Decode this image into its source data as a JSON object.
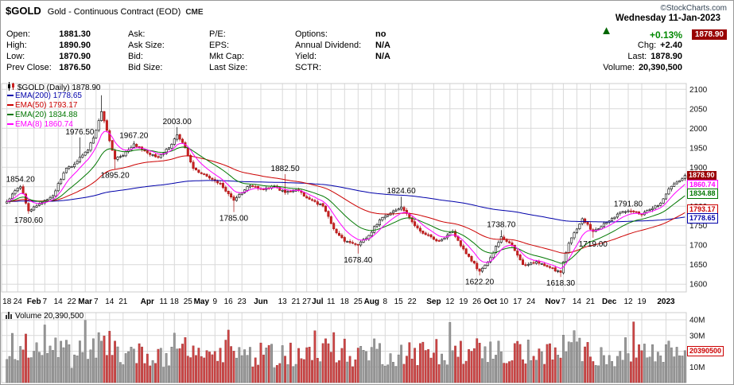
{
  "header": {
    "symbol": "$GOLD",
    "title": "Gold - Continuous Contract (EOD)",
    "exchange": "CME",
    "copyright": "©StockCharts.com",
    "date": "Wednesday 11-Jan-2023",
    "direction_icon": "▲",
    "change_pct": "+0.13%",
    "price_badge": "1878.90",
    "right_rows": [
      {
        "label": "Chg:",
        "value": "+2.40"
      },
      {
        "label": "Last:",
        "value": "1878.90"
      },
      {
        "label": "Volume:",
        "value": "20,390,500"
      }
    ],
    "quote_columns": [
      {
        "rows": [
          {
            "label": "Open:",
            "value": "1881.30"
          },
          {
            "label": "High:",
            "value": "1890.90"
          },
          {
            "label": "Low:",
            "value": "1870.90"
          },
          {
            "label": "Prev Close:",
            "value": "1876.50"
          }
        ]
      },
      {
        "rows": [
          {
            "label": "Ask:",
            "value": ""
          },
          {
            "label": "Ask Size:",
            "value": ""
          },
          {
            "label": "Bid:",
            "value": ""
          },
          {
            "label": "Bid Size:",
            "value": ""
          }
        ]
      },
      {
        "rows": [
          {
            "label": "P/E:",
            "value": ""
          },
          {
            "label": "EPS:",
            "value": ""
          },
          {
            "label": "Mkt Cap:",
            "value": ""
          },
          {
            "label": "Last Size:",
            "value": ""
          }
        ]
      },
      {
        "rows": [
          {
            "label": "Options:",
            "value": "no"
          },
          {
            "label": "Annual Dividend:",
            "value": "N/A"
          },
          {
            "label": "Yield:",
            "value": "N/A"
          },
          {
            "label": "SCTR:",
            "value": ""
          }
        ]
      }
    ]
  },
  "chart_data": {
    "type": "candlestick",
    "symbol_label": "$GOLD (Daily) 1878.90",
    "last_close": 1878.9,
    "candle_count": 252,
    "price_axis": {
      "min": 1580,
      "max": 2115,
      "ticks": [
        2100,
        2050,
        2000,
        1950,
        1900,
        1850,
        1800,
        1750,
        1700,
        1650,
        1600
      ]
    },
    "overlays": [
      {
        "name": "EMA(200)",
        "period": 200,
        "value": 1778.65,
        "label": "EMA(200) 1778.65",
        "color": "#0000aa"
      },
      {
        "name": "EMA(50)",
        "period": 50,
        "value": 1793.17,
        "label": "EMA(50) 1793.17",
        "color": "#cc0000"
      },
      {
        "name": "EMA(20)",
        "period": 20,
        "value": 1834.88,
        "label": "EMA(20) 1834.88",
        "color": "#007700"
      },
      {
        "name": "EMA(8)",
        "period": 8,
        "value": 1860.74,
        "label": "EMA(8) 1860.74",
        "color": "#ff00ff"
      }
    ],
    "close_keypoints": [
      [
        0,
        1812
      ],
      [
        3,
        1840
      ],
      [
        5,
        1850
      ],
      [
        8,
        1788
      ],
      [
        12,
        1806
      ],
      [
        17,
        1827
      ],
      [
        22,
        1898
      ],
      [
        25,
        1908
      ],
      [
        27,
        1926
      ],
      [
        30,
        1944
      ],
      [
        33,
        1995
      ],
      [
        35,
        2043
      ],
      [
        38,
        1968
      ],
      [
        40,
        1921
      ],
      [
        43,
        1930
      ],
      [
        47,
        1960
      ],
      [
        52,
        1937
      ],
      [
        56,
        1925
      ],
      [
        60,
        1950
      ],
      [
        63,
        1983
      ],
      [
        66,
        1950
      ],
      [
        69,
        1897
      ],
      [
        73,
        1882
      ],
      [
        76,
        1869
      ],
      [
        79,
        1858
      ],
      [
        84,
        1815
      ],
      [
        88,
        1842
      ],
      [
        90,
        1853
      ],
      [
        95,
        1843
      ],
      [
        99,
        1852
      ],
      [
        103,
        1835
      ],
      [
        107,
        1842
      ],
      [
        112,
        1818
      ],
      [
        117,
        1800
      ],
      [
        121,
        1742
      ],
      [
        125,
        1710
      ],
      [
        130,
        1700
      ],
      [
        134,
        1725
      ],
      [
        138,
        1765
      ],
      [
        143,
        1788
      ],
      [
        146,
        1798
      ],
      [
        151,
        1750
      ],
      [
        155,
        1727
      ],
      [
        160,
        1710
      ],
      [
        165,
        1735
      ],
      [
        170,
        1678
      ],
      [
        175,
        1633
      ],
      [
        179,
        1668
      ],
      [
        183,
        1722
      ],
      [
        187,
        1700
      ],
      [
        191,
        1650
      ],
      [
        196,
        1658
      ],
      [
        200,
        1645
      ],
      [
        205,
        1630
      ],
      [
        208,
        1705
      ],
      [
        213,
        1768
      ],
      [
        217,
        1735
      ],
      [
        222,
        1758
      ],
      [
        226,
        1780
      ],
      [
        230,
        1788
      ],
      [
        235,
        1778
      ],
      [
        238,
        1792
      ],
      [
        242,
        1808
      ],
      [
        245,
        1844
      ],
      [
        248,
        1862
      ],
      [
        251,
        1878.9
      ]
    ],
    "wick_overrides": {
      "5": {
        "high": 1854.2
      },
      "8": {
        "low": 1780.6
      },
      "27": {
        "high": 1976.5
      },
      "35": {
        "high": 2085
      },
      "40": {
        "low": 1895.2
      },
      "47": {
        "high": 1967.2
      },
      "63": {
        "high": 2003
      },
      "84": {
        "low": 1785
      },
      "103": {
        "high": 1882.5
      },
      "130": {
        "low": 1678.4
      },
      "146": {
        "high": 1824.6
      },
      "175": {
        "low": 1622.2
      },
      "183": {
        "high": 1738.7
      },
      "205": {
        "low": 1618.3
      },
      "217": {
        "low": 1719
      },
      "230": {
        "high": 1791.8
      }
    },
    "annotations": [
      {
        "text": "1854.20",
        "i": 5,
        "price": 1854.2,
        "pos": "above"
      },
      {
        "text": "1780.60",
        "i": 8,
        "price": 1780.6,
        "pos": "below"
      },
      {
        "text": "1976.50",
        "i": 27,
        "price": 1976.5,
        "pos": "above"
      },
      {
        "text": "1895.20",
        "i": 40,
        "price": 1895.2,
        "pos": "below"
      },
      {
        "text": "1967.20",
        "i": 47,
        "price": 1967.2,
        "pos": "above"
      },
      {
        "text": "2003.00",
        "i": 63,
        "price": 2003.0,
        "pos": "above"
      },
      {
        "text": "1785.00",
        "i": 84,
        "price": 1785.0,
        "pos": "below"
      },
      {
        "text": "1882.50",
        "i": 103,
        "price": 1882.5,
        "pos": "above"
      },
      {
        "text": "1678.40",
        "i": 130,
        "price": 1678.4,
        "pos": "below"
      },
      {
        "text": "1824.60",
        "i": 146,
        "price": 1824.6,
        "pos": "above"
      },
      {
        "text": "1622.20",
        "i": 175,
        "price": 1622.2,
        "pos": "below"
      },
      {
        "text": "1738.70",
        "i": 183,
        "price": 1738.7,
        "pos": "above"
      },
      {
        "text": "1618.30",
        "i": 205,
        "price": 1618.3,
        "pos": "below"
      },
      {
        "text": "1719.00",
        "i": 217,
        "price": 1719.0,
        "pos": "below"
      },
      {
        "text": "1791.80",
        "i": 230,
        "price": 1791.8,
        "pos": "above"
      }
    ],
    "x_ticks": [
      {
        "label": "18",
        "i": 0
      },
      {
        "label": "24",
        "i": 4
      },
      {
        "label": "Feb",
        "i": 10,
        "month": true
      },
      {
        "label": "7",
        "i": 14
      },
      {
        "label": "14",
        "i": 19
      },
      {
        "label": "22",
        "i": 24
      },
      {
        "label": "Mar",
        "i": 29,
        "month": true
      },
      {
        "label": "7",
        "i": 33
      },
      {
        "label": "14",
        "i": 38
      },
      {
        "label": "21",
        "i": 43
      },
      {
        "label": "Apr",
        "i": 52,
        "month": true
      },
      {
        "label": "11",
        "i": 58
      },
      {
        "label": "18",
        "i": 62
      },
      {
        "label": "25",
        "i": 67
      },
      {
        "label": "May",
        "i": 72,
        "month": true
      },
      {
        "label": "9",
        "i": 77
      },
      {
        "label": "16",
        "i": 82
      },
      {
        "label": "23",
        "i": 87
      },
      {
        "label": "Jun",
        "i": 94,
        "month": true
      },
      {
        "label": "13",
        "i": 102
      },
      {
        "label": "21",
        "i": 107
      },
      {
        "label": "27",
        "i": 111
      },
      {
        "label": "Jul",
        "i": 115,
        "month": true
      },
      {
        "label": "11",
        "i": 120
      },
      {
        "label": "18",
        "i": 125
      },
      {
        "label": "25",
        "i": 130
      },
      {
        "label": "Aug",
        "i": 135,
        "month": true
      },
      {
        "label": "8",
        "i": 140
      },
      {
        "label": "15",
        "i": 145
      },
      {
        "label": "22",
        "i": 150
      },
      {
        "label": "Sep",
        "i": 158,
        "month": true
      },
      {
        "label": "12",
        "i": 164
      },
      {
        "label": "19",
        "i": 169
      },
      {
        "label": "26",
        "i": 174
      },
      {
        "label": "Oct",
        "i": 179,
        "month": true
      },
      {
        "label": "10",
        "i": 184
      },
      {
        "label": "17",
        "i": 189
      },
      {
        "label": "24",
        "i": 194
      },
      {
        "label": "Nov",
        "i": 202,
        "month": true
      },
      {
        "label": "7",
        "i": 206
      },
      {
        "label": "14",
        "i": 211
      },
      {
        "label": "21",
        "i": 216
      },
      {
        "label": "Dec",
        "i": 223,
        "month": true
      },
      {
        "label": "12",
        "i": 230
      },
      {
        "label": "19",
        "i": 235
      },
      {
        "label": "2023",
        "i": 244,
        "month": true
      }
    ],
    "price_labels_right": [
      {
        "text": "1878.90",
        "price": 1878.9,
        "color": "#ffffff",
        "bg": "#990000",
        "type": "badge"
      },
      {
        "text": "1860.74",
        "price": 1860.74,
        "color": "#ff00ff"
      },
      {
        "text": "1834.88",
        "price": 1834.88,
        "color": "#007700"
      },
      {
        "text": "1793.17",
        "price": 1793.17,
        "color": "#cc0000"
      },
      {
        "text": "1778.65",
        "price": 1778.65,
        "color": "#0000aa"
      }
    ],
    "volume": {
      "label": "Volume 20,390,500",
      "last": 20390500,
      "last_label": "20390500",
      "max": 43000000,
      "axis_ticks": [
        {
          "text": "40M",
          "v": 40000000
        },
        {
          "text": "30M",
          "v": 30000000
        },
        {
          "text": "20M",
          "v": 20000000
        },
        {
          "text": "10M",
          "v": 10000000
        }
      ],
      "up_color": "#999999",
      "up_border": "#666666",
      "down_color": "#cc4444",
      "down_border": "#993333"
    },
    "colors": {
      "up": "#ffffff",
      "up_border": "#000000",
      "down": "#cc2222",
      "down_border": "#aa1111",
      "grid": "#d9d9d9",
      "axis_text": "#111111"
    }
  }
}
